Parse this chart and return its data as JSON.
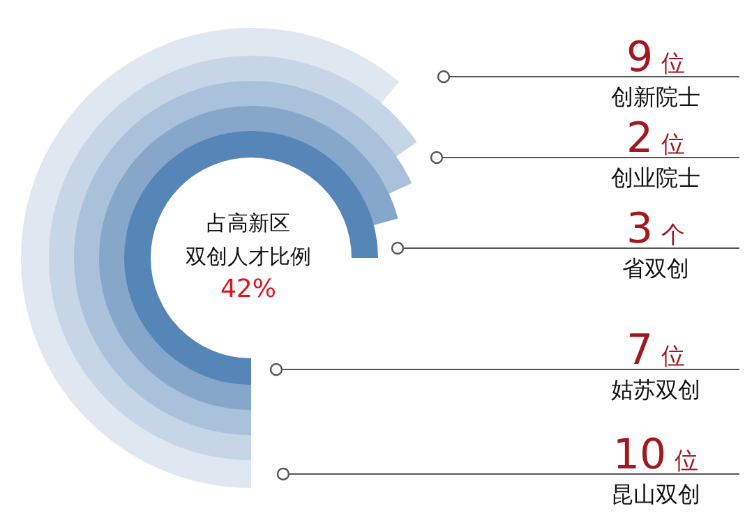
{
  "chart_data": {
    "type": "other",
    "categories": [
      "创新院士",
      "创业院士",
      "省双创",
      "姑苏双创",
      "昆山双创"
    ],
    "values": [
      9,
      2,
      3,
      7,
      10
    ],
    "value_labels": [
      "9 位",
      "2 位",
      "3 个",
      "7 位",
      "10 位"
    ],
    "color": "#a3181f",
    "annotations": [
      "占高新区",
      "双创人才比例",
      "42%"
    ]
  }
}
